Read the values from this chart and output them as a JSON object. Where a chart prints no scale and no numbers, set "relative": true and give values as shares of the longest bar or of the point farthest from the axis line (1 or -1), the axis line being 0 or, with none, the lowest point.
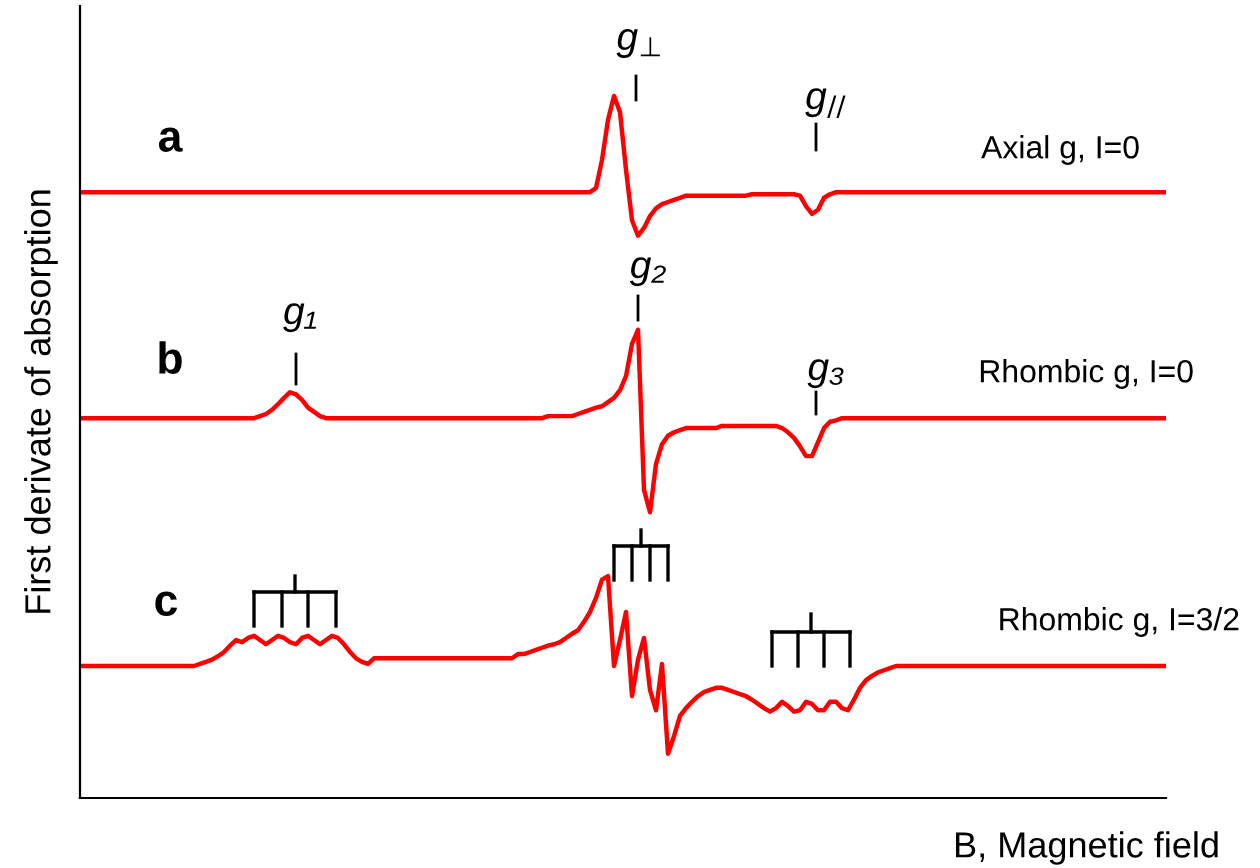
{
  "chart_data": {
    "type": "line",
    "relative": true,
    "xlabel": "B, Magnetic field",
    "ylabel": "First derivate of absorption",
    "marker": "none",
    "line_style": "solid",
    "annotations": [
      "a",
      "b",
      "c",
      "g$_{⊥}$",
      "g$_{//}$",
      "g₁",
      "g₂",
      "g₃",
      "Axial g, I=0",
      "Rhombic g, I=0",
      "Rhombic g, I=3/2"
    ],
    "categories": [
      null,
      null,
      null,
      null,
      null,
      null,
      null,
      null,
      null,
      null,
      null,
      null,
      null,
      null,
      null,
      null,
      null,
      null,
      null,
      null,
      null,
      null,
      null,
      null,
      null,
      null,
      null,
      null,
      null,
      null,
      null,
      null,
      null,
      null,
      null,
      null,
      null,
      null,
      null,
      null,
      null,
      null,
      null,
      null,
      null,
      null,
      null,
      null,
      null,
      null,
      null,
      null,
      null,
      null,
      null,
      null,
      null,
      null,
      null,
      null,
      null,
      null,
      null,
      null,
      null,
      null,
      null,
      null,
      null,
      null,
      null,
      null,
      null,
      null,
      null,
      null,
      null,
      null,
      null,
      null,
      null,
      null,
      null,
      null,
      null,
      null,
      null,
      null,
      null,
      null,
      null,
      null,
      null,
      null,
      null,
      null,
      null,
      null,
      null,
      null,
      null,
      null,
      null,
      null,
      null,
      null,
      null,
      null,
      null,
      null,
      null,
      null,
      null,
      null,
      null,
      null,
      null,
      null,
      null,
      null,
      null,
      null,
      null,
      null,
      null,
      null,
      null,
      null,
      null,
      null,
      null,
      null,
      null,
      null,
      null,
      null,
      null,
      null,
      null,
      null,
      null,
      null,
      null,
      null,
      null,
      null,
      null,
      null,
      null,
      null,
      null,
      null,
      null,
      null,
      null,
      null,
      null,
      null,
      null,
      null,
      null,
      null,
      null,
      null,
      null,
      null,
      null,
      null,
      null,
      null,
      null,
      null,
      null,
      null,
      null,
      null,
      null,
      null,
      null,
      null,
      null,
      null
    ],
    "series": [
      {
        "color": "#ff0000",
        "values": [
          0.863,
          0.863,
          0.863,
          0.863,
          0.863,
          0.863,
          0.863,
          0.863,
          0.863,
          0.863,
          0.863,
          0.863,
          0.863,
          0.863,
          0.863,
          0.863,
          0.863,
          0.863,
          0.863,
          0.863,
          0.863,
          0.863,
          0.863,
          0.863,
          0.863,
          0.863,
          0.863,
          0.863,
          0.863,
          0.863,
          0.863,
          0.863,
          0.863,
          0.863,
          0.863,
          0.863,
          0.863,
          0.863,
          0.863,
          0.863,
          0.863,
          0.863,
          0.863,
          0.863,
          0.863,
          0.863,
          0.863,
          0.863,
          0.863,
          0.863,
          0.863,
          0.863,
          0.863,
          0.863,
          0.863,
          0.863,
          0.863,
          0.863,
          0.863,
          0.863,
          0.863,
          0.863,
          0.863,
          0.863,
          0.863,
          0.863,
          0.863,
          0.863,
          0.863,
          0.863,
          0.863,
          0.863,
          0.863,
          0.863,
          0.863,
          0.863,
          0.863,
          0.863,
          0.863,
          0.863,
          0.863,
          0.863,
          0.863,
          0.863,
          0.863,
          0.863,
          0.869,
          0.909,
          0.966,
          1.0,
          0.977,
          0.895,
          0.823,
          0.801,
          0.812,
          0.829,
          0.84,
          0.846,
          0.849,
          0.852,
          0.855,
          0.858,
          0.858,
          0.858,
          0.858,
          0.858,
          0.858,
          0.858,
          0.858,
          0.858,
          0.858,
          0.858,
          0.86,
          0.86,
          0.86,
          0.86,
          0.86,
          0.86,
          0.86,
          0.86,
          0.858,
          0.843,
          0.832,
          0.838,
          0.855,
          0.86,
          0.863,
          0.863,
          0.863,
          0.863,
          0.863,
          0.863,
          0.863,
          0.863,
          0.863,
          0.863,
          0.863,
          0.863,
          0.863,
          0.863,
          0.863,
          0.863,
          0.863,
          0.863,
          0.863,
          0.863,
          0.863,
          0.863,
          0.863,
          0.863,
          0.863,
          0.863,
          0.863,
          0.863,
          0.863,
          0.863,
          0.863,
          0.863,
          0.863,
          0.863,
          0.863,
          0.863,
          0.863,
          0.863,
          0.863,
          0.863,
          0.863,
          0.863,
          0.863,
          0.863,
          0.863,
          0.863,
          0.863,
          0.863,
          0.863,
          0.863,
          0.863,
          0.863,
          0.863,
          0.863,
          0.863,
          0.863
        ]
      },
      {
        "color": "#ff0000",
        "values": [
          0.541,
          0.541,
          0.541,
          0.541,
          0.541,
          0.541,
          0.541,
          0.541,
          0.541,
          0.541,
          0.541,
          0.541,
          0.541,
          0.541,
          0.541,
          0.541,
          0.541,
          0.541,
          0.541,
          0.541,
          0.541,
          0.541,
          0.541,
          0.541,
          0.541,
          0.541,
          0.541,
          0.541,
          0.541,
          0.541,
          0.544,
          0.547,
          0.553,
          0.561,
          0.57,
          0.578,
          0.575,
          0.567,
          0.556,
          0.55,
          0.544,
          0.541,
          0.541,
          0.541,
          0.541,
          0.541,
          0.541,
          0.541,
          0.541,
          0.541,
          0.541,
          0.541,
          0.541,
          0.541,
          0.541,
          0.541,
          0.541,
          0.541,
          0.541,
          0.541,
          0.541,
          0.541,
          0.541,
          0.541,
          0.541,
          0.541,
          0.541,
          0.541,
          0.541,
          0.541,
          0.541,
          0.541,
          0.541,
          0.541,
          0.541,
          0.541,
          0.541,
          0.541,
          0.544,
          0.544,
          0.544,
          0.544,
          0.544,
          0.547,
          0.55,
          0.553,
          0.556,
          0.558,
          0.564,
          0.57,
          0.581,
          0.601,
          0.647,
          0.667,
          0.439,
          0.407,
          0.476,
          0.504,
          0.516,
          0.521,
          0.524,
          0.527,
          0.527,
          0.527,
          0.527,
          0.527,
          0.527,
          0.53,
          0.53,
          0.53,
          0.53,
          0.53,
          0.53,
          0.53,
          0.53,
          0.53,
          0.53,
          0.527,
          0.521,
          0.513,
          0.501,
          0.487,
          0.487,
          0.507,
          0.527,
          0.536,
          0.538,
          0.541,
          0.541,
          0.541,
          0.541,
          0.541,
          0.541,
          0.541,
          0.541,
          0.541,
          0.541,
          0.541,
          0.541,
          0.541,
          0.541,
          0.541,
          0.541,
          0.541,
          0.541,
          0.541,
          0.541,
          0.541,
          0.541,
          0.541,
          0.541,
          0.541,
          0.541,
          0.541,
          0.541,
          0.541,
          0.541,
          0.541,
          0.541,
          0.541,
          0.541,
          0.541,
          0.541,
          0.541,
          0.541,
          0.541,
          0.541,
          0.541,
          0.541,
          0.541,
          0.541,
          0.541,
          0.541,
          0.541,
          0.541,
          0.541,
          0.541,
          0.541,
          0.541,
          0.541,
          0.541,
          0.541
        ]
      },
      {
        "color": "#ff0000",
        "values": [
          0.188,
          0.188,
          0.188,
          0.188,
          0.188,
          0.188,
          0.188,
          0.188,
          0.188,
          0.188,
          0.188,
          0.188,
          0.188,
          0.188,
          0.188,
          0.188,
          0.188,
          0.188,
          0.188,
          0.188,
          0.191,
          0.194,
          0.197,
          0.202,
          0.208,
          0.217,
          0.225,
          0.222,
          0.228,
          0.231,
          0.225,
          0.219,
          0.225,
          0.231,
          0.228,
          0.222,
          0.219,
          0.228,
          0.231,
          0.225,
          0.219,
          0.225,
          0.231,
          0.228,
          0.219,
          0.208,
          0.199,
          0.194,
          0.191,
          0.199,
          0.199,
          0.199,
          0.199,
          0.199,
          0.199,
          0.199,
          0.199,
          0.199,
          0.199,
          0.199,
          0.199,
          0.199,
          0.199,
          0.199,
          0.199,
          0.199,
          0.199,
          0.199,
          0.199,
          0.199,
          0.199,
          0.199,
          0.199,
          0.205,
          0.205,
          0.208,
          0.211,
          0.214,
          0.217,
          0.219,
          0.222,
          0.228,
          0.234,
          0.239,
          0.251,
          0.265,
          0.285,
          0.311,
          0.316,
          0.188,
          0.225,
          0.265,
          0.145,
          0.197,
          0.228,
          0.154,
          0.125,
          0.191,
          0.063,
          0.088,
          0.117,
          0.128,
          0.137,
          0.145,
          0.151,
          0.154,
          0.157,
          0.157,
          0.154,
          0.151,
          0.148,
          0.145,
          0.14,
          0.134,
          0.128,
          0.123,
          0.128,
          0.137,
          0.131,
          0.123,
          0.125,
          0.137,
          0.134,
          0.125,
          0.125,
          0.137,
          0.137,
          0.128,
          0.125,
          0.14,
          0.157,
          0.168,
          0.174,
          0.179,
          0.182,
          0.185,
          0.188,
          0.188,
          0.188,
          0.188,
          0.188,
          0.188,
          0.188,
          0.188,
          0.188,
          0.188,
          0.188,
          0.188,
          0.188,
          0.188,
          0.188,
          0.188,
          0.188,
          0.188,
          0.188,
          0.188,
          0.188,
          0.188,
          0.188,
          0.188,
          0.188,
          0.188,
          0.188,
          0.188,
          0.188,
          0.188,
          0.188,
          0.188,
          0.188,
          0.188,
          0.188,
          0.188,
          0.188,
          0.188,
          0.188,
          0.188,
          0.188,
          0.188,
          0.188,
          0.188,
          0.188,
          0.188
        ]
      }
    ]
  }
}
